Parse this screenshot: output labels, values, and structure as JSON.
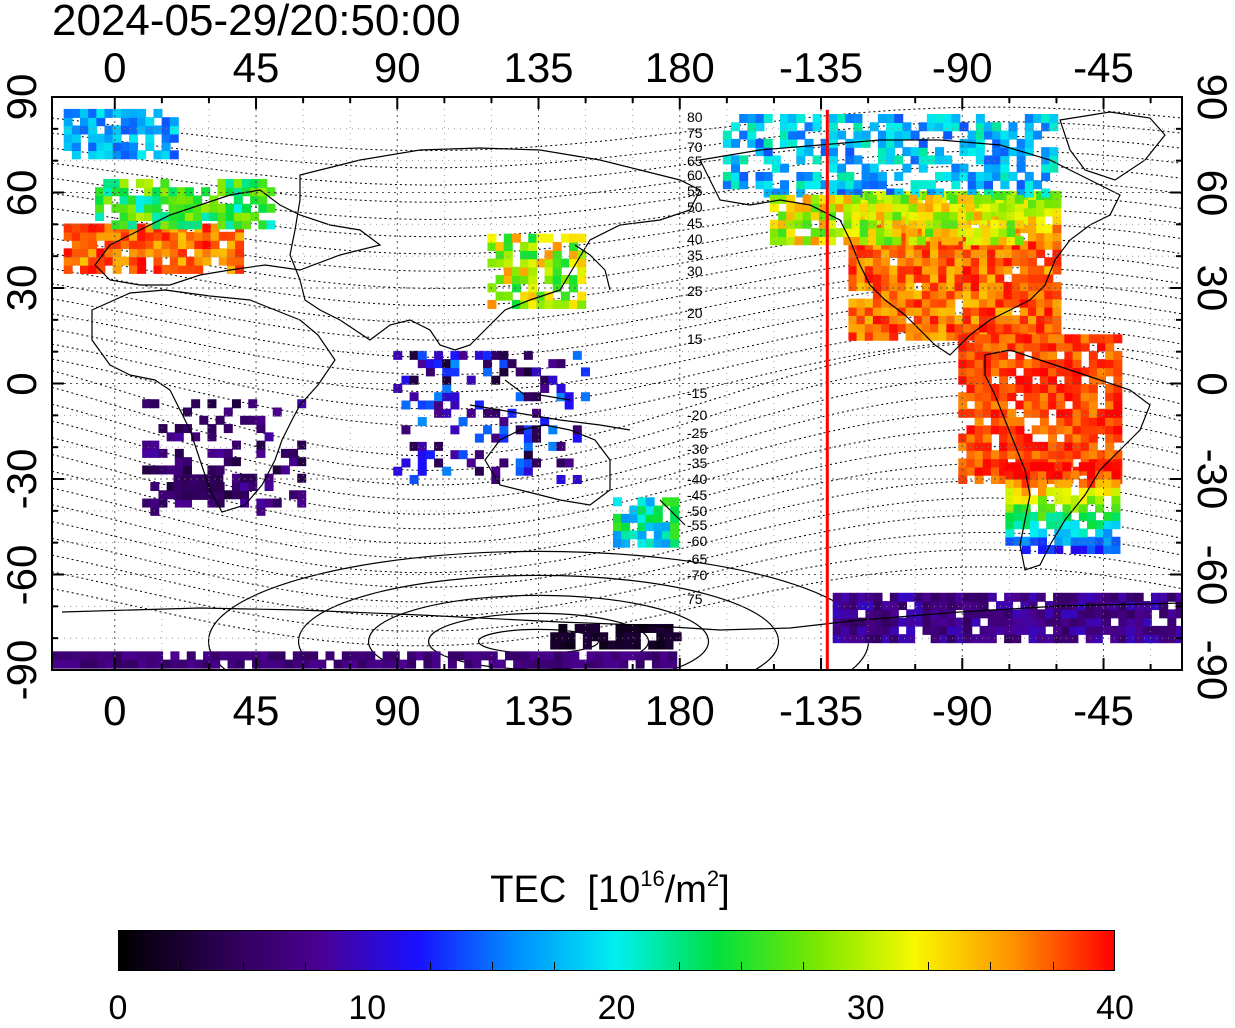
{
  "timestamp": "2024-05-29/20:50:00",
  "colors": {
    "colormap": [
      "#000000",
      "#2a0050",
      "#4b0090",
      "#1a10ff",
      "#0090ff",
      "#00f0f0",
      "#00e040",
      "#78e800",
      "#f8f800",
      "#ff9000",
      "#ff0000"
    ],
    "meridian_line": "#ff0000",
    "coastline": "#000000",
    "grid": "#555555"
  },
  "map": {
    "top_axis_ticks": [
      "0",
      "45",
      "90",
      "135",
      "180",
      "-135",
      "-90",
      "-45"
    ],
    "bottom_axis_ticks": [
      "0",
      "45",
      "90",
      "135",
      "180",
      "-135",
      "-90",
      "-45"
    ],
    "left_axis_ticks": [
      "90",
      "60",
      "30",
      "0",
      "-30",
      "-60",
      "-90"
    ],
    "right_axis_ticks": [
      "90",
      "60",
      "30",
      "0",
      "-30",
      "-60",
      "-90"
    ],
    "lon_range": [
      -20,
      340
    ],
    "lat_range": [
      -90,
      90
    ],
    "lat_tick_step": 30,
    "lon_tick_step": 45,
    "grid": "dotted",
    "red_meridian_lon": -133,
    "magnetic_latitude_labels": [
      "80",
      "75",
      "70",
      "65",
      "60",
      "55",
      "50",
      "45",
      "40",
      "35",
      "30",
      "25",
      "20",
      "15",
      "-15",
      "-20",
      "-25",
      "-30",
      "-35",
      "-40",
      "-45",
      "-50",
      "-55",
      "-60",
      "-65",
      "-70",
      "75"
    ]
  },
  "colorbar": {
    "title": "TEC",
    "unit_prefix": "[10",
    "unit_exp1": "16",
    "unit_mid": "/m",
    "unit_exp2": "2",
    "unit_suffix": "]",
    "ticks": [
      "0",
      "10",
      "20",
      "30",
      "40"
    ],
    "range": [
      0,
      40
    ]
  }
}
